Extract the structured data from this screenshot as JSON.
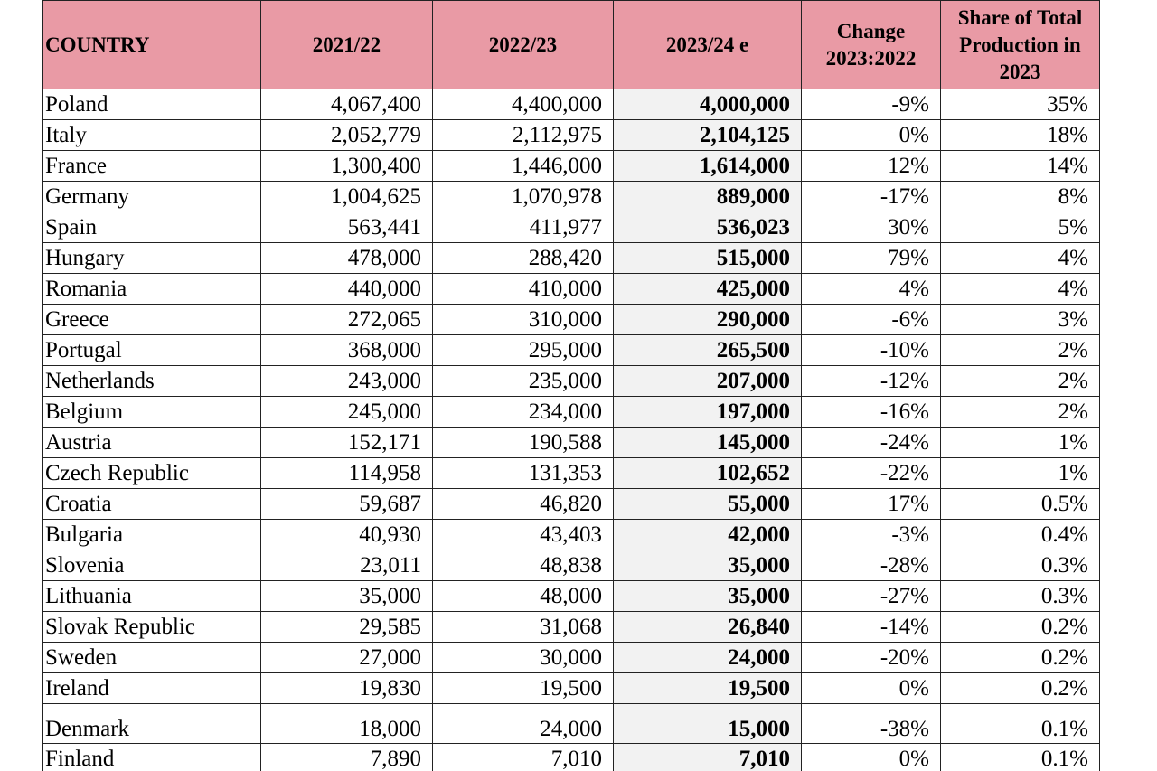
{
  "table": {
    "header": [
      "COUNTRY",
      "2021/22",
      "2022/23",
      "2023/24 e",
      "Change 2023:2022",
      "Share of Total Production in 2023"
    ],
    "rows": [
      [
        "Poland",
        "4,067,400",
        "4,400,000",
        "4,000,000",
        "-9%",
        "35%"
      ],
      [
        "Italy",
        "2,052,779",
        "2,112,975",
        "2,104,125",
        "0%",
        "18%"
      ],
      [
        "France",
        "1,300,400",
        "1,446,000",
        "1,614,000",
        "12%",
        "14%"
      ],
      [
        "Germany",
        "1,004,625",
        "1,070,978",
        "889,000",
        "-17%",
        "8%"
      ],
      [
        "Spain",
        "563,441",
        "411,977",
        "536,023",
        "30%",
        "5%"
      ],
      [
        "Hungary",
        "478,000",
        "288,420",
        "515,000",
        "79%",
        "4%"
      ],
      [
        "Romania",
        "440,000",
        "410,000",
        "425,000",
        "4%",
        "4%"
      ],
      [
        "Greece",
        "272,065",
        "310,000",
        "290,000",
        "-6%",
        "3%"
      ],
      [
        "Portugal",
        "368,000",
        "295,000",
        "265,500",
        "-10%",
        "2%"
      ],
      [
        "Netherlands",
        "243,000",
        "235,000",
        "207,000",
        "-12%",
        "2%"
      ],
      [
        "Belgium",
        "245,000",
        "234,000",
        "197,000",
        "-16%",
        "2%"
      ],
      [
        "Austria",
        "152,171",
        "190,588",
        "145,000",
        "-24%",
        "1%"
      ],
      [
        "Czech Republic",
        "114,958",
        "131,353",
        "102,652",
        "-22%",
        "1%"
      ],
      [
        "Croatia",
        "59,687",
        "46,820",
        "55,000",
        "17%",
        "0.5%"
      ],
      [
        "Bulgaria",
        "40,930",
        "43,403",
        "42,000",
        "-3%",
        "0.4%"
      ],
      [
        "Slovenia",
        "23,011",
        "48,838",
        "35,000",
        "-28%",
        "0.3%"
      ],
      [
        "Lithuania",
        "35,000",
        "48,000",
        "35,000",
        "-27%",
        "0.3%"
      ],
      [
        "Slovak Republic",
        "29,585",
        "31,068",
        "26,840",
        "-14%",
        "0.2%"
      ],
      [
        "Sweden",
        "27,000",
        "30,000",
        "24,000",
        "-20%",
        "0.2%"
      ],
      [
        "Ireland",
        "19,830",
        "19,500",
        "19,500",
        "0%",
        "0.2%"
      ],
      [
        "Denmark",
        "18,000",
        "24,000",
        "15,000",
        "-38%",
        "0.1%"
      ],
      [
        "Finland",
        "7,890",
        "7,010",
        "7,010",
        "0%",
        "0.1%"
      ]
    ]
  }
}
